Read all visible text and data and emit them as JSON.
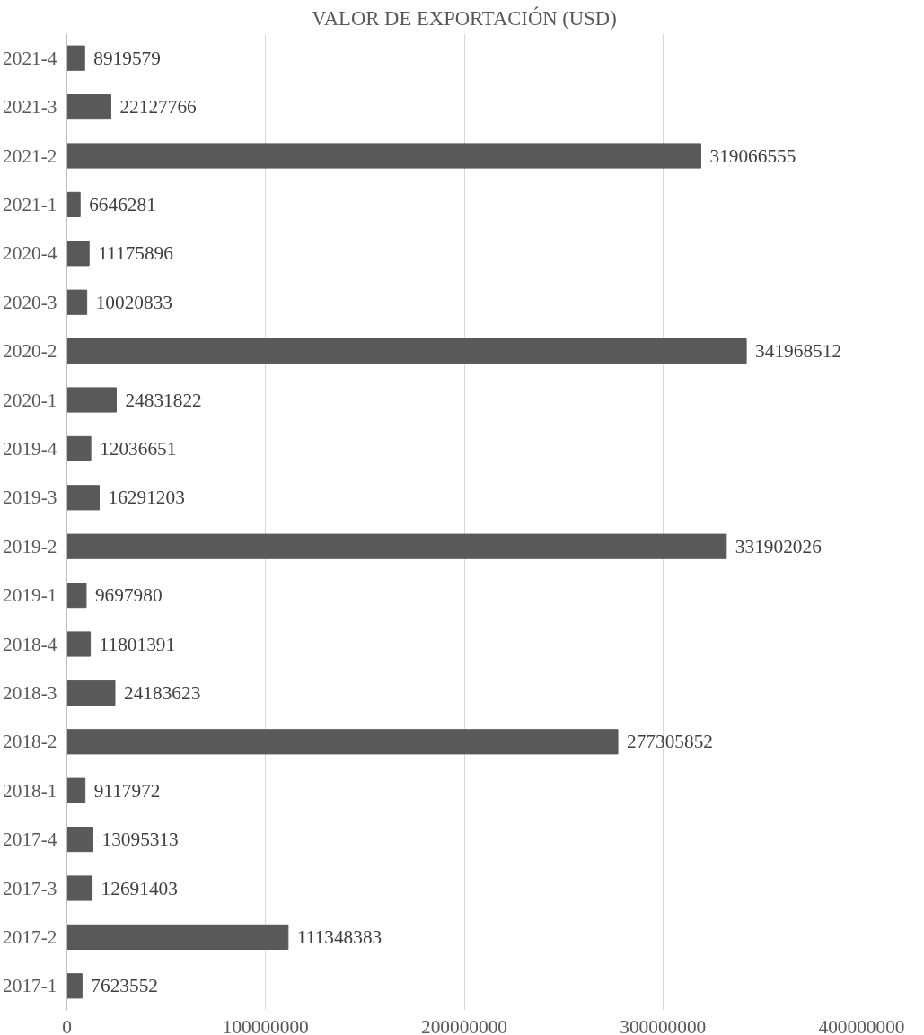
{
  "chart_data": {
    "type": "bar",
    "orientation": "horizontal",
    "title": "VALOR DE EXPORTACIÓN (USD)",
    "categories": [
      "2021-4",
      "2021-3",
      "2021-2",
      "2021-1",
      "2020-4",
      "2020-3",
      "2020-2",
      "2020-1",
      "2019-4",
      "2019-3",
      "2019-2",
      "2019-1",
      "2018-4",
      "2018-3",
      "2018-2",
      "2018-1",
      "2017-4",
      "2017-3",
      "2017-2",
      "2017-1"
    ],
    "values": [
      8919579,
      22127766,
      319066555,
      6646281,
      11175896,
      10020833,
      341968512,
      24831822,
      12036651,
      16291203,
      331902026,
      9697980,
      11801391,
      24183623,
      277305852,
      9117972,
      13095313,
      12691403,
      111348383,
      7623552
    ],
    "color": "#595959",
    "xlim": [
      0,
      400000000
    ],
    "xticks": [
      0,
      100000000,
      200000000,
      300000000,
      400000000
    ],
    "grid": "x",
    "data_labels": true
  }
}
